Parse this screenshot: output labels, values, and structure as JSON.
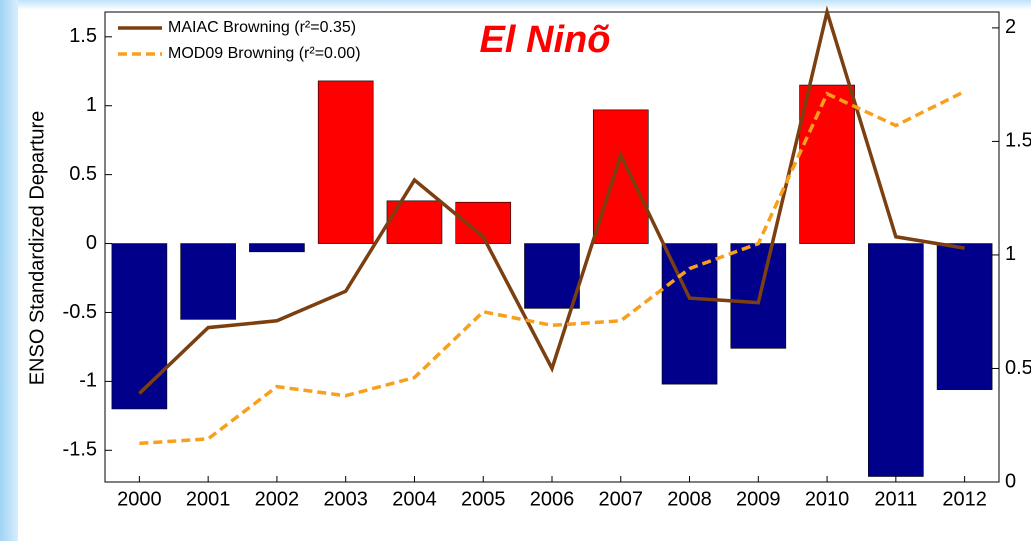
{
  "chart_data": {
    "type": "bar_line",
    "ylabel": "ENSO Standardized Departure",
    "annotation": "El Ninõ",
    "categories": [
      "2000",
      "2001",
      "2002",
      "2003",
      "2004",
      "2005",
      "2006",
      "2007",
      "2008",
      "2009",
      "2010",
      "2011",
      "2012"
    ],
    "values": [
      -1.2,
      -0.55,
      -0.06,
      1.18,
      0.31,
      0.3,
      -0.47,
      0.97,
      -1.02,
      -0.76,
      1.15,
      -1.69,
      -1.06
    ],
    "colors": [
      "#00008b",
      "#00008b",
      "#00008b",
      "#ff0000",
      "#ff0000",
      "#ff0000",
      "#00008b",
      "#ff0000",
      "#00008b",
      "#00008b",
      "#ff0000",
      "#00008b",
      "#00008b"
    ],
    "series": [
      {
        "name": "MAIAC Browning (r²=0.35)",
        "color": "#7b3f10",
        "axis": "y2",
        "values": [
          0.39,
          0.68,
          0.71,
          0.84,
          1.33,
          1.08,
          0.5,
          1.44,
          0.81,
          0.79,
          2.07,
          1.08,
          1.03
        ]
      },
      {
        "name": "MOD09 Browning (r²=0.00)",
        "color": "#f8a01c",
        "axis": "y2",
        "dashed": true,
        "values": [
          0.17,
          0.19,
          0.42,
          0.38,
          0.46,
          0.75,
          0.69,
          0.71,
          0.94,
          1.05,
          1.71,
          1.57,
          1.72
        ]
      }
    ],
    "ylim": [
      -1.73,
      1.68
    ],
    "yticks": [
      -1.5,
      -1,
      -0.5,
      0,
      0.5,
      1,
      1.5
    ],
    "y2lim": [
      0,
      2.07
    ],
    "y2ticks": [
      0,
      0.5,
      1,
      1.5,
      2
    ],
    "legend": "top-left"
  }
}
